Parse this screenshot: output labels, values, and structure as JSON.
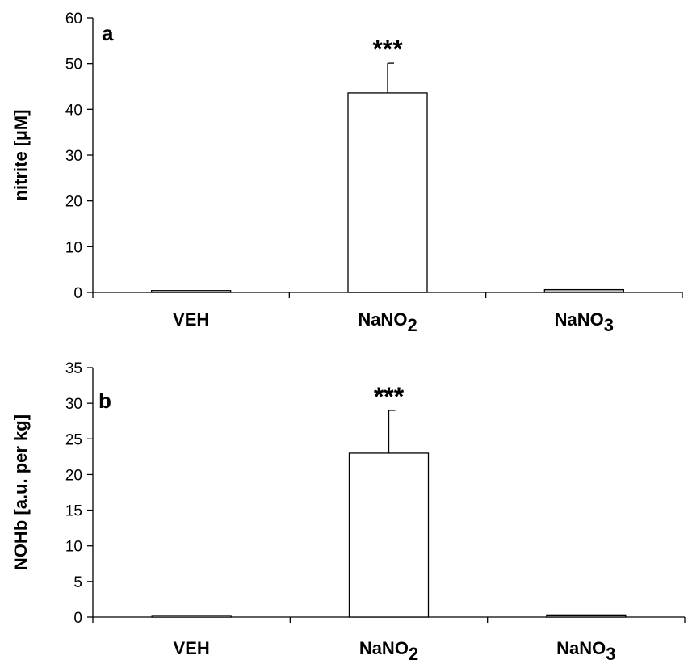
{
  "chart_data": [
    {
      "type": "bar",
      "panel_label": "a",
      "ylabel": "nitrite [µM]",
      "ylim": [
        0,
        60
      ],
      "yticks": [
        0,
        10,
        20,
        30,
        40,
        50,
        60
      ],
      "categories": [
        {
          "base": "VEH",
          "sub": ""
        },
        {
          "base": "NaNO",
          "sub": "2"
        },
        {
          "base": "NaNO",
          "sub": "3"
        }
      ],
      "values": [
        0.4,
        43.6,
        0.6
      ],
      "errors": [
        0.1,
        6.5,
        0.2
      ],
      "significance": [
        "",
        "***",
        ""
      ],
      "bar_colors": [
        "#ffffff",
        "#ffffff",
        "#c8c8c8"
      ],
      "grid": false
    },
    {
      "type": "bar",
      "panel_label": "b",
      "ylabel": "NOHb [a.u. per kg]",
      "ylim": [
        0,
        35
      ],
      "yticks": [
        0,
        5,
        10,
        15,
        20,
        25,
        30,
        35
      ],
      "categories": [
        {
          "base": "VEH",
          "sub": ""
        },
        {
          "base": "NaNO",
          "sub": "2"
        },
        {
          "base": "NaNO",
          "sub": "3"
        }
      ],
      "values": [
        0.1,
        23.0,
        0.3
      ],
      "errors": [
        0.05,
        6.0,
        0.1
      ],
      "significance": [
        "",
        "***",
        ""
      ],
      "bar_colors": [
        "#ffffff",
        "#ffffff",
        "#ffffff"
      ],
      "grid": false
    }
  ]
}
